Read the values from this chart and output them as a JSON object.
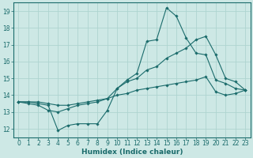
{
  "xlabel": "Humidex (Indice chaleur)",
  "ylabel": "",
  "xlim": [
    -0.5,
    23.5
  ],
  "ylim": [
    11.5,
    19.5
  ],
  "xticks": [
    0,
    1,
    2,
    3,
    4,
    5,
    6,
    7,
    8,
    9,
    10,
    11,
    12,
    13,
    14,
    15,
    16,
    17,
    18,
    19,
    20,
    21,
    22,
    23
  ],
  "yticks": [
    12,
    13,
    14,
    15,
    16,
    17,
    18,
    19
  ],
  "bg_color": "#cde8e5",
  "grid_color": "#aed4d0",
  "line_color": "#1a6b6b",
  "spine_color": "#1a6b6b",
  "line1_x": [
    0,
    1,
    2,
    3,
    4,
    5,
    6,
    7,
    8,
    9,
    10,
    11,
    12,
    13,
    14,
    15,
    16,
    17,
    18,
    19,
    20,
    21,
    22,
    23
  ],
  "line1_y": [
    13.6,
    13.6,
    13.5,
    13.4,
    11.9,
    12.2,
    12.3,
    12.3,
    12.3,
    13.1,
    14.4,
    14.9,
    15.3,
    17.2,
    17.3,
    19.2,
    18.7,
    17.4,
    16.5,
    16.4,
    14.9,
    14.7,
    14.4,
    14.3
  ],
  "line2_x": [
    0,
    1,
    2,
    3,
    4,
    5,
    6,
    7,
    8,
    9,
    10,
    11,
    12,
    13,
    14,
    15,
    16,
    17,
    18,
    19,
    20,
    21,
    22,
    23
  ],
  "line2_y": [
    13.6,
    13.5,
    13.4,
    13.1,
    13.0,
    13.2,
    13.4,
    13.5,
    13.6,
    13.8,
    14.4,
    14.8,
    15.0,
    15.5,
    15.7,
    16.2,
    16.5,
    16.8,
    17.3,
    17.5,
    16.4,
    15.0,
    14.8,
    14.3
  ],
  "line3_x": [
    0,
    1,
    2,
    3,
    4,
    5,
    6,
    7,
    8,
    9,
    10,
    11,
    12,
    13,
    14,
    15,
    16,
    17,
    18,
    19,
    20,
    21,
    22,
    23
  ],
  "line3_y": [
    13.6,
    13.6,
    13.6,
    13.5,
    13.4,
    13.4,
    13.5,
    13.6,
    13.7,
    13.8,
    14.0,
    14.1,
    14.3,
    14.4,
    14.5,
    14.6,
    14.7,
    14.8,
    14.9,
    15.1,
    14.2,
    14.0,
    14.1,
    14.3
  ],
  "tick_fontsize": 5.5,
  "xlabel_fontsize": 6.5,
  "marker_size": 1.8,
  "line_width": 0.8
}
